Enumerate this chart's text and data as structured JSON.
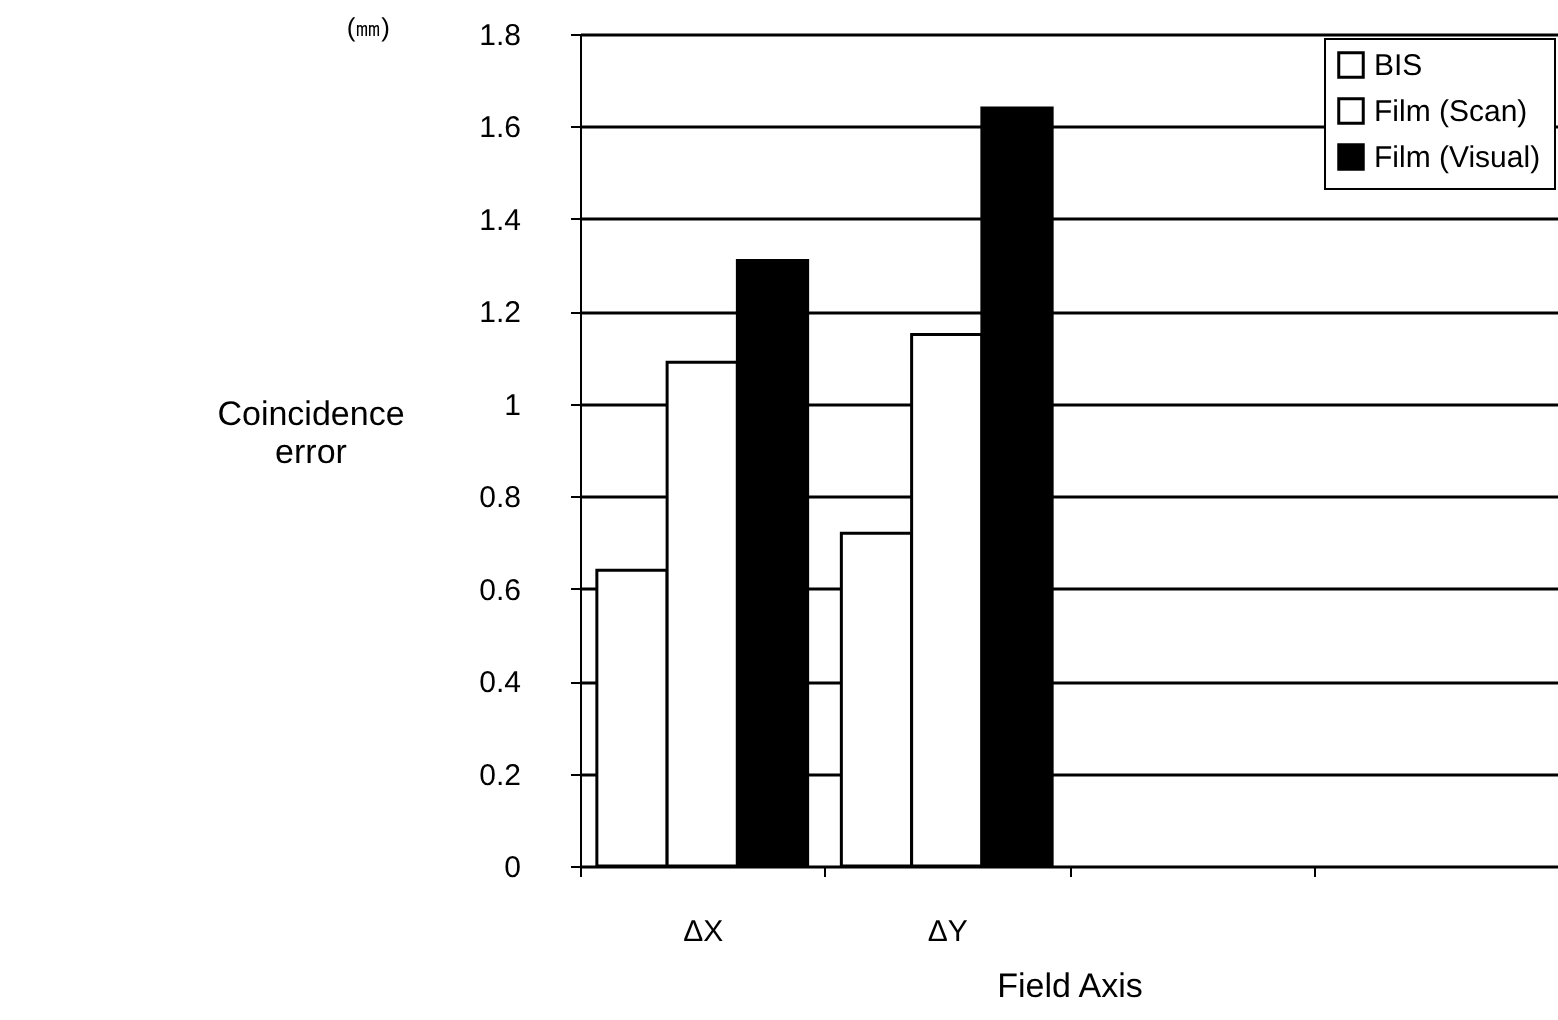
{
  "chart_data": {
    "type": "bar",
    "xlabel": "Field Axis",
    "ylabel": "Coincidence error",
    "annotations": [
      "(㎜)"
    ],
    "categories": [
      "ΔX",
      "ΔY",
      null,
      null
    ],
    "series": [
      {
        "name": "BIS",
        "color": "#ffffff",
        "values": [
          0.64,
          0.72,
          null,
          null
        ]
      },
      {
        "name": "Film (Scan)",
        "color": "#ffffff",
        "values": [
          1.09,
          1.15,
          null,
          null
        ]
      },
      {
        "name": "Film (Visual)",
        "color": "#000000",
        "values": [
          1.31,
          1.64,
          null,
          null
        ]
      }
    ],
    "ylim": [
      0,
      1.8
    ],
    "yticks": [
      0,
      0.2,
      0.4,
      0.6,
      0.8,
      1,
      1.2,
      1.4,
      1.6,
      1.8
    ],
    "grid": "y",
    "legend": "top right"
  }
}
